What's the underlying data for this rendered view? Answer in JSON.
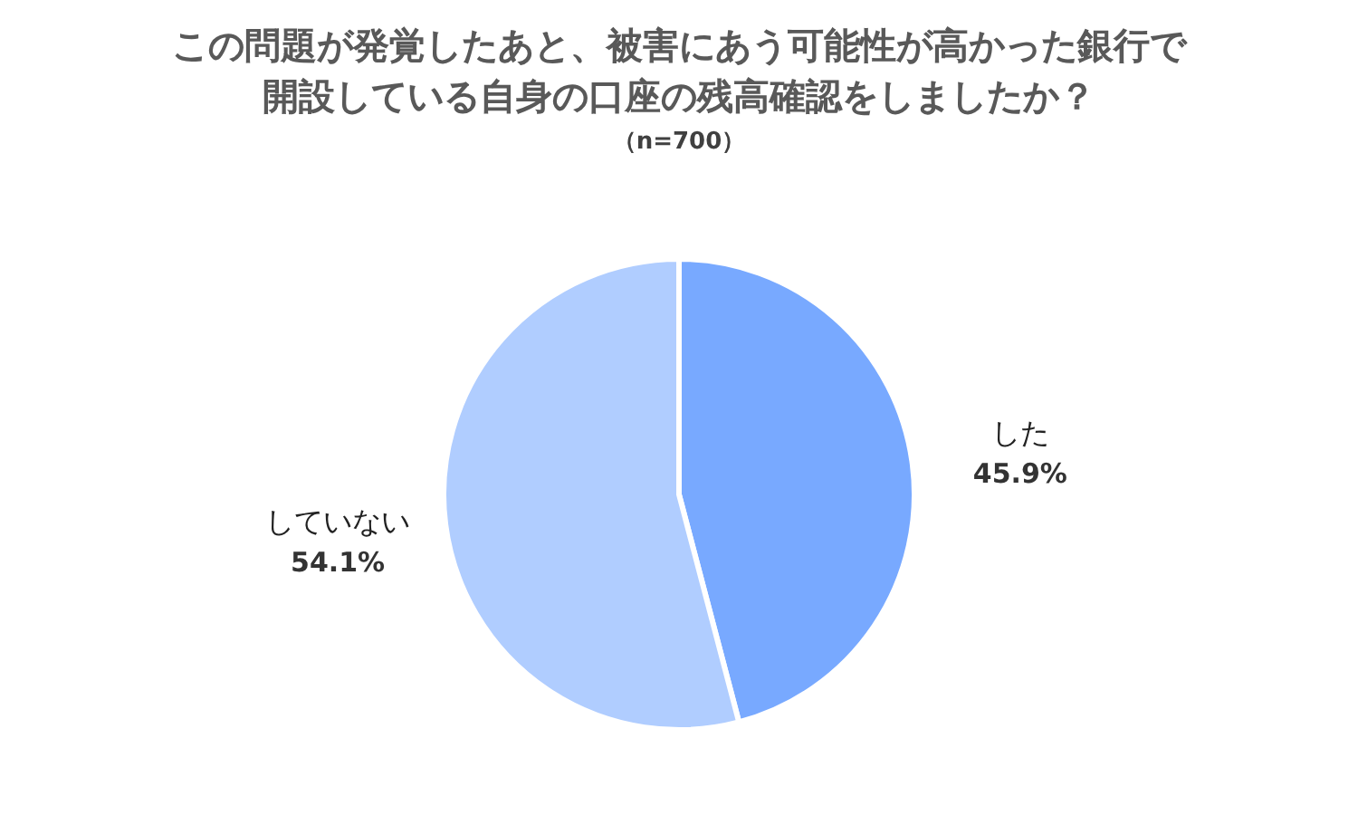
{
  "chart_data": {
    "type": "pie",
    "title": "この問題が発覚したあと、被害にあう可能性が高かった銀行で開設している自身の口座の残高確認をしましたか？",
    "subtitle": "（n=700）",
    "categories": [
      "した",
      "していない"
    ],
    "values": [
      45.9,
      54.1
    ],
    "value_labels": [
      "45.9%",
      "54.1%"
    ],
    "colors": [
      "#78a9ff",
      "#b0cdff"
    ]
  }
}
